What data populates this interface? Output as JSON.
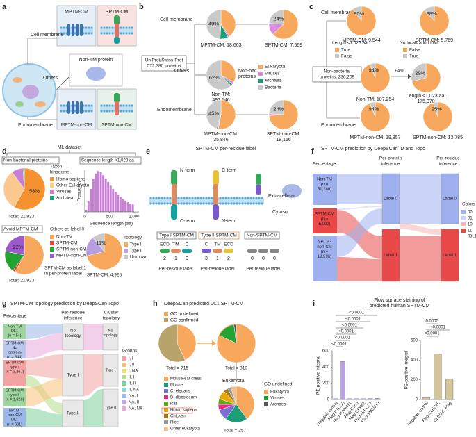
{
  "a": {
    "letter": "a",
    "mptm_cm": "MPTM-CM",
    "sptm_cm": "SPTM-CM",
    "cell_membrane": "Cell membrane",
    "others": "Others",
    "non_tm": "Non-TM protein",
    "mptm_non_cm": "MPTM-non-CM",
    "sptm_non_cm": "SPTM-non-CM",
    "endomembrane": "Endomembrane"
  },
  "b": {
    "letter": "b",
    "root": [
      "UniProt/Swiss-Prot",
      "572,380 proteins"
    ],
    "cell_membrane": "Cell membrane",
    "others": "Others",
    "endomembrane": "Endomembrane",
    "non_bac": [
      "Non-bac",
      "proteins"
    ],
    "legend": [
      {
        "name": "Eukaryota",
        "color": "#f7a85c"
      },
      {
        "name": "Viruses",
        "color": "#d98ee0"
      },
      {
        "name": "Archaea",
        "color": "#1b9e77"
      },
      {
        "name": "Bacteria",
        "color": "#c9c9c9"
      }
    ],
    "pies": [
      {
        "label": "49%",
        "caption": "MPTM-CM: 18,663",
        "values": [
          40,
          2,
          9,
          49
        ]
      },
      {
        "label": "24%",
        "caption": "SPTM-CM: 7,569",
        "values": [
          63,
          13,
          0,
          24
        ]
      },
      {
        "label": "62%",
        "caption": [
          "Non-TM:",
          "492,146"
        ],
        "values": [
          33,
          3,
          2,
          62
        ]
      },
      {
        "label": "45%",
        "caption": [
          "MPTM-non-CM:",
          "35,846"
        ],
        "values": [
          53,
          1,
          1,
          45
        ]
      },
      {
        "label": "24%",
        "caption": [
          "SPTM-non-CM:",
          "18,156"
        ],
        "values": [
          74,
          2,
          0,
          24
        ]
      }
    ]
  },
  "c": {
    "letter": "c",
    "root": [
      "Non-bacterial",
      "proteins, 236,209"
    ],
    "cell_membrane": "Cell membrane",
    "others": "Others",
    "endomembrane": "Endomembrane",
    "length_title": "Length <1,023 aa",
    "legend1": [
      {
        "name": "True",
        "color": "#f7a85c"
      },
      {
        "name": "False",
        "color": "#c9c9c9"
      }
    ],
    "noloc_title": "No localization info",
    "legend2": [
      {
        "name": "False",
        "color": "#f7a85c"
      },
      {
        "name": "True",
        "color": "#c9c9c9"
      }
    ],
    "arrow_label": "94%",
    "pies": [
      {
        "label": "90%",
        "caption": "MPTM-CM: 9,544",
        "values": [
          90,
          10
        ]
      },
      {
        "label": "88%",
        "caption": "SPTM-CM: 5,769",
        "values": [
          88,
          12
        ]
      },
      {
        "label": "94%",
        "caption": "Non-TM: 187,254",
        "values": [
          94,
          6
        ]
      },
      {
        "label": "29%",
        "caption": [
          "Length <1,023 aa:",
          "175,970"
        ],
        "values": [
          71,
          29
        ]
      },
      {
        "label": "94%",
        "caption": "MPTM-non-CM: 19,857",
        "values": [
          94,
          6
        ]
      },
      {
        "label": "95%",
        "caption": "SPTM-non-CM: 13,785",
        "values": [
          95,
          5
        ]
      }
    ]
  },
  "d": {
    "letter": "d",
    "title": "ML dataset",
    "nonbac": "Non-bacterial proteins",
    "taxon_title": [
      "Taxon",
      "kingdoms"
    ],
    "taxon_legend": [
      {
        "name": "Homo sapiens",
        "color": "#f5922f"
      },
      {
        "name": "Other Eukaryota",
        "color": "#fbc88f"
      },
      {
        "name": "Viruses",
        "color": "#c77fd6"
      },
      {
        "name": "Archaea",
        "color": "#1b9e77"
      }
    ],
    "pie1": {
      "label": "58%",
      "caption": "Total: 21,923",
      "values": [
        58,
        32,
        9,
        1
      ]
    },
    "hist": {
      "title": "Sequence length <1,023 aa",
      "ylabel": "Frequency",
      "xlabel": "Sequence length (aa)",
      "color": "#c77fd6",
      "xlim": [
        0,
        1100
      ],
      "xticks": [
        0,
        500,
        {
          "value": 1000,
          "label": "1,000"
        }
      ],
      "ylim": [
        0,
        100
      ],
      "bins": [
        0,
        50,
        100,
        150,
        200,
        250,
        300,
        350,
        400,
        450,
        500,
        550,
        600,
        650,
        700,
        750,
        800,
        850,
        900,
        950,
        1000
      ],
      "counts": [
        5,
        25,
        55,
        80,
        92,
        98,
        95,
        88,
        80,
        72,
        63,
        55,
        48,
        42,
        36,
        31,
        27,
        23,
        20,
        18
      ]
    },
    "avoid": "Avoid MPTM-CM",
    "others_title": "Others as label 0",
    "label_legend": [
      {
        "name": "Non-TM",
        "color": "#f7a85c"
      },
      {
        "name": "SPTM-CM",
        "color": "#e8423c"
      },
      {
        "name": "SPTM-non-CM",
        "color": "#22a332"
      },
      {
        "name": "MPTM-non-CM",
        "color": "#9b59c9"
      }
    ],
    "pie2": {
      "label": "22%",
      "caption": "Total: 21,923",
      "values": [
        58,
        2,
        18,
        22
      ]
    },
    "label1_note": [
      "SPTM-CM as label 1",
      "in per-protein label"
    ],
    "topology_title": "Topology",
    "topology_legend": [
      {
        "name": "Type I",
        "color": "#f7a85c"
      },
      {
        "name": "Type II",
        "color": "#b79fe0"
      },
      {
        "name": "Unknown",
        "color": "#c9c9c9"
      }
    ],
    "pie3": {
      "label": "11%",
      "caption": "SPTM-CM: 4,925",
      "values": [
        71,
        18,
        11
      ]
    }
  },
  "e": {
    "letter": "e",
    "title": "SPTM-CM per-residue label",
    "n_term1": "N-term",
    "c_term1": "C-term",
    "c_term2": "C-term",
    "n_term2": "N-term",
    "extracellular": "Extracellular",
    "cytosol": "Cytosol",
    "type1": "Type I SPTM-CM",
    "type2": "Type II SPTM-CM",
    "non": "Non-SPTM-CM",
    "seg1": [
      "ECD",
      "TM",
      "C"
    ],
    "num1": [
      "2",
      "1",
      "0"
    ],
    "seg2": [
      "C",
      "TM",
      "ECD"
    ],
    "num2": [
      "3",
      "1",
      "2"
    ],
    "num3": [
      "0",
      "0",
      "0"
    ],
    "per_residue": [
      "Per-residue label",
      "Per-residue label",
      "Per-residue label"
    ]
  },
  "f": {
    "letter": "f",
    "title": "SPTM-CM prediction by DeepSCan ID and Topo",
    "percentage": "Percentage",
    "per_protein": [
      "Per-protein",
      "inference"
    ],
    "per_residue": [
      "Per-residue",
      "inference"
    ],
    "nodes": [
      [
        "Non-TM",
        "(n =",
        "51,380)"
      ],
      [
        "SPTM-CM",
        "(n =",
        "5,000)"
      ],
      [
        "SPTM-",
        "non-CM",
        "(n =",
        "12,996)"
      ]
    ],
    "mid": [
      "Label 0",
      "Label 1"
    ],
    "right": [
      "Label 0",
      "Label 1"
    ],
    "colors_title": "Colors",
    "colors": [
      {
        "name": "00",
        "color": "#9fb0ee"
      },
      {
        "name": "01",
        "color": "#c8d2f6"
      },
      {
        "name": "10",
        "color": "#f4b6b6"
      },
      {
        "name": "11",
        "note": "(DL1)",
        "color": "#e84848"
      }
    ]
  },
  "g": {
    "letter": "g",
    "title": "SPTM-CM topology prediction by DeepSCan Topo",
    "percentage": "Percentage",
    "per_residue": [
      "Per-residue",
      "inference"
    ],
    "cluster": [
      "Cluster",
      "topology"
    ],
    "nodes": [
      [
        "Non-TM",
        "DL1",
        "(n = 54)"
      ],
      [
        "SPTM-CM",
        "No",
        "topology",
        "(n = 544)"
      ],
      [
        "SPTM-CM",
        "type I",
        "(n = 3,267)"
      ],
      [
        "SPTM-CM",
        "type II",
        "(n = 1,028)"
      ],
      [
        "SPTM-",
        "non-CM",
        "DL1",
        "(n = 681)"
      ]
    ],
    "mid": [
      [
        "No",
        "topology"
      ],
      "Type I",
      "Type II"
    ],
    "right": [
      [
        "No",
        "topology"
      ],
      "Type I",
      "Type II"
    ],
    "groups_title": "Groups",
    "groups": [
      {
        "name": "I, I",
        "color": "#f4a3a3"
      },
      {
        "name": "I, II",
        "color": "#f7c27a"
      },
      {
        "name": "I, NA",
        "color": "#e9e070"
      },
      {
        "name": "II, I",
        "color": "#b5dd8a"
      },
      {
        "name": "II, II",
        "color": "#7fcf9a"
      },
      {
        "name": "II, NA",
        "color": "#8fd6d0"
      },
      {
        "name": "NA, I",
        "color": "#9ab8ea"
      },
      {
        "name": "NA, II",
        "color": "#c2a6e6"
      },
      {
        "name": "NA, NA",
        "color": "#e8a8d8"
      }
    ]
  },
  "h": {
    "letter": "h",
    "title": "DeepSCan predicted DL1 SPTM-CM",
    "go_legend": [
      {
        "name": "GO undefined",
        "color": "#f7a85c"
      },
      {
        "name": "GO confirmed",
        "color": "#b8a36b"
      }
    ],
    "pie1": {
      "caption": "Total = 715",
      "values": [
        43,
        57
      ]
    },
    "pie2": {
      "caption": "Total = 310",
      "values": [
        82,
        16,
        2
      ]
    },
    "species": [
      {
        "name": "Mouse-ear cress",
        "color": "#f7a85c"
      },
      {
        "name": "Mouse",
        "color": "#1b9e77"
      },
      {
        "name": "C. elegans",
        "color": "#7a6fd0"
      },
      {
        "name": "D. discoideum",
        "color": "#e7298a"
      },
      {
        "name": "Rat",
        "color": "#66a61e"
      },
      {
        "name": "Homo sapiens",
        "color": "#e6ab02"
      },
      {
        "name": "Chicken",
        "color": "#a6761d"
      },
      {
        "name": "Rice",
        "color": "#999999"
      },
      {
        "name": "Ohter eukaryota",
        "color": "#f0c090"
      }
    ],
    "eukaryota": "Eukaryota",
    "pie3": {
      "caption": "Total = 257",
      "values": [
        40,
        20,
        10,
        5,
        5,
        8,
        4,
        3,
        5
      ]
    },
    "undefined_title": "GO undefined",
    "undefined_legend": [
      {
        "name": "Eukaryota",
        "color": "#f7a85c"
      },
      {
        "name": "Viruses",
        "color": "#22a332"
      },
      {
        "name": "Archaea",
        "color": "#555555"
      }
    ]
  },
  "i": {
    "letter": "i",
    "title": [
      "Flow surface staining of",
      "predicted human SPTM-CM"
    ],
    "left": {
      "ylabel": "PE-positive integral",
      "color": "#b9a3e0",
      "ylim": [
        0,
        600
      ],
      "yticks": [
        0,
        200,
        400,
        600
      ],
      "categories": [
        "Negative control",
        "Flag-PTCD3",
        "Flag-PTPMT1",
        "Flag-C1orf",
        "Flag-GPR62",
        "Flag-NIT-CD2",
        "Flag-TMED10"
      ],
      "values": [
        10,
        470,
        10,
        10,
        10,
        12,
        15
      ],
      "pvalues": [
        "<0.0001",
        "<0.0001",
        "<0.0001",
        "<0.0001",
        "<0.0001",
        "<0.0001"
      ]
    },
    "right": {
      "ylabel": "PE-positive integral",
      "color": "#d6c49a",
      "ylim": [
        0,
        600
      ],
      "yticks": [
        0,
        200,
        400,
        600
      ],
      "categories": [
        "Negative control",
        "Flag-CLEC2L",
        "CLEC2L-Flag"
      ],
      "values": [
        20,
        460,
        210
      ],
      "pvalues": [
        "<0.0001",
        "<0.0001",
        "0.0005"
      ]
    }
  }
}
